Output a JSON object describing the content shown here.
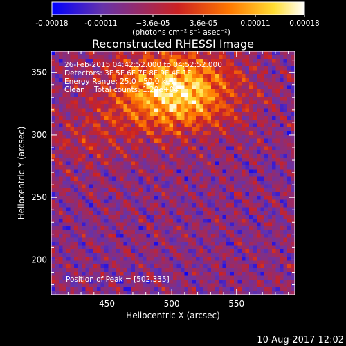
{
  "chart_data": {
    "type": "heatmap",
    "title": "Reconstructed RHESSI Image",
    "xlabel": "Heliocentric X (arcsec)",
    "ylabel": "Heliocentric Y (arcsec)",
    "xlim": [
      407,
      595
    ],
    "ylim": [
      172,
      367
    ],
    "x_ticks": [
      450,
      500,
      550
    ],
    "y_ticks": [
      200,
      250,
      300,
      350
    ],
    "colorbar": {
      "range": [
        -0.00018,
        0.00018
      ],
      "tick_values": [
        -0.00018,
        -0.00011,
        -3.6e-05,
        3.6e-05,
        0.00011,
        0.00018
      ],
      "tick_labels": [
        "-0.00018",
        "-0.00011",
        "−3.6e-05",
        "3.6e-05",
        "0.00011",
        "0.00018"
      ],
      "label": "(photons cm⁻² s⁻¹ asec⁻²)",
      "colors": [
        "#0000ff",
        "#6633aa",
        "#cc2222",
        "#ff7700",
        "#ffdd33",
        "#ffffff"
      ]
    },
    "annotations": [
      "26-Feb-2015 04:42:52.000 to 04:52:52.000",
      "Detectors: 3F 5F 6F 7F 8F 9F 4F 1F",
      "Energy Range: 25.0 - 50.0 keV",
      "Clean    Total counts: 1.29e+04"
    ],
    "peak_text": "Position of Peak = [502,335]",
    "peak": [
      502,
      335
    ],
    "footer_timestamp": "10-Aug-2017 12:02"
  }
}
